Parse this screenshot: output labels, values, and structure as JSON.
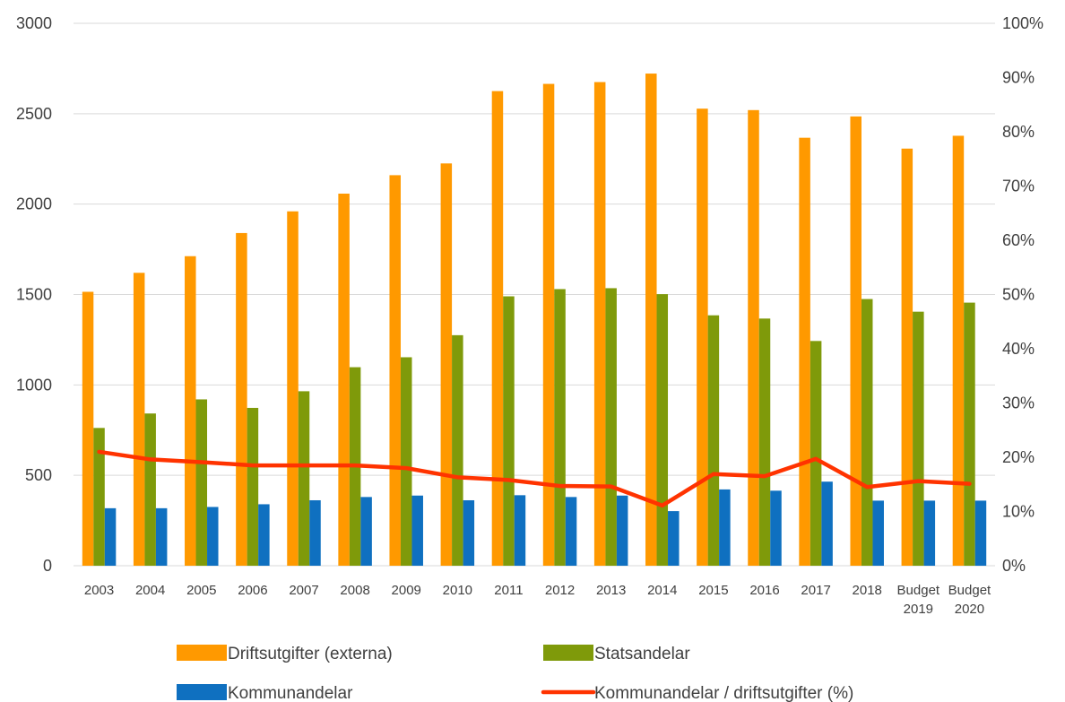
{
  "chart_data": {
    "type": "bar",
    "categories": [
      [
        "2003"
      ],
      [
        "2004"
      ],
      [
        "2005"
      ],
      [
        "2006"
      ],
      [
        "2007"
      ],
      [
        "2008"
      ],
      [
        "2009"
      ],
      [
        "2010"
      ],
      [
        "2011"
      ],
      [
        "2012"
      ],
      [
        "2013"
      ],
      [
        "2014"
      ],
      [
        "2015"
      ],
      [
        "2016"
      ],
      [
        "2017"
      ],
      [
        "2018"
      ],
      [
        "Budget",
        "2019"
      ],
      [
        "Budget",
        "2020"
      ]
    ],
    "y_left": {
      "min": 0,
      "max": 3000,
      "ticks": [
        "0",
        "500",
        "1000",
        "1500",
        "2000",
        "2500",
        "3000"
      ]
    },
    "y_right": {
      "min": 0,
      "max": 100,
      "ticks": [
        "0%",
        "10%",
        "20%",
        "30%",
        "40%",
        "50%",
        "60%",
        "70%",
        "80%",
        "90%",
        "100%"
      ]
    },
    "grid": true,
    "legend_position": "bottom",
    "series": [
      {
        "name": "Driftsutgifter (externa)",
        "type": "bar",
        "axis": "left",
        "color": "#FF9900",
        "values": [
          1515,
          1620,
          1712,
          1840,
          1960,
          2058,
          2160,
          2225,
          2625,
          2665,
          2675,
          2722,
          2528,
          2520,
          2367,
          2485,
          2307,
          2378
        ]
      },
      {
        "name": "Statsandelar",
        "type": "bar",
        "axis": "left",
        "color": "#7F9A0A",
        "values": [
          762,
          842,
          920,
          873,
          965,
          1098,
          1153,
          1275,
          1490,
          1530,
          1535,
          1502,
          1385,
          1367,
          1243,
          1475,
          1405,
          1455
        ]
      },
      {
        "name": "Kommunandelar",
        "type": "bar",
        "axis": "left",
        "color": "#0F70C0",
        "values": [
          318,
          318,
          325,
          340,
          362,
          380,
          388,
          362,
          390,
          380,
          388,
          302,
          422,
          415,
          465,
          360,
          360,
          360
        ]
      },
      {
        "name": "Kommunandelar / driftsutgifter (%)",
        "type": "line",
        "axis": "right",
        "color": "#FF3300",
        "values": [
          21.0,
          19.6,
          19.1,
          18.5,
          18.5,
          18.5,
          18.0,
          16.3,
          15.8,
          14.7,
          14.6,
          11.1,
          16.9,
          16.5,
          19.7,
          14.5,
          15.6,
          15.1
        ]
      }
    ]
  }
}
